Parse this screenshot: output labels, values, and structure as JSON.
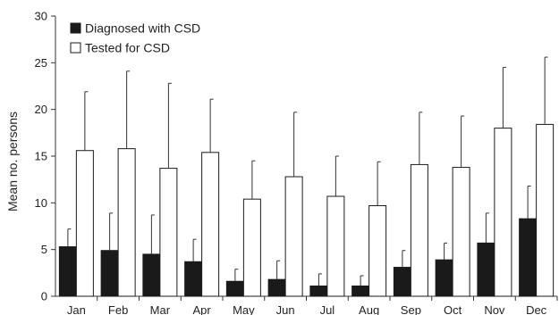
{
  "chart_data": {
    "type": "bar",
    "title": "",
    "xlabel": "",
    "ylabel": "Mean no. persons",
    "ylim": [
      0,
      30
    ],
    "yticks": [
      0,
      5,
      10,
      15,
      20,
      25,
      30
    ],
    "grid": false,
    "legend_position": "top-left",
    "categories": [
      "Jan",
      "Feb",
      "Mar",
      "Apr",
      "May",
      "Jun",
      "Jul",
      "Aug",
      "Sep",
      "Oct",
      "Nov",
      "Dec"
    ],
    "series": [
      {
        "name": "Diagnosed with CSD",
        "fill": "#1a1a1a",
        "values": [
          5.3,
          4.9,
          4.5,
          3.7,
          1.6,
          1.8,
          1.1,
          1.1,
          3.1,
          3.9,
          5.7,
          8.3
        ],
        "error_upper": [
          7.2,
          8.9,
          8.7,
          6.1,
          2.9,
          3.8,
          2.4,
          2.2,
          4.9,
          5.7,
          8.9,
          11.8
        ]
      },
      {
        "name": "Tested for CSD",
        "fill": "#ffffff",
        "values": [
          15.6,
          15.8,
          13.7,
          15.4,
          10.4,
          12.8,
          10.7,
          9.7,
          14.1,
          13.8,
          18.0,
          18.4
        ],
        "error_upper": [
          21.9,
          24.1,
          22.8,
          21.1,
          14.5,
          19.7,
          15.0,
          14.4,
          19.7,
          19.3,
          24.5,
          25.6
        ]
      }
    ]
  }
}
